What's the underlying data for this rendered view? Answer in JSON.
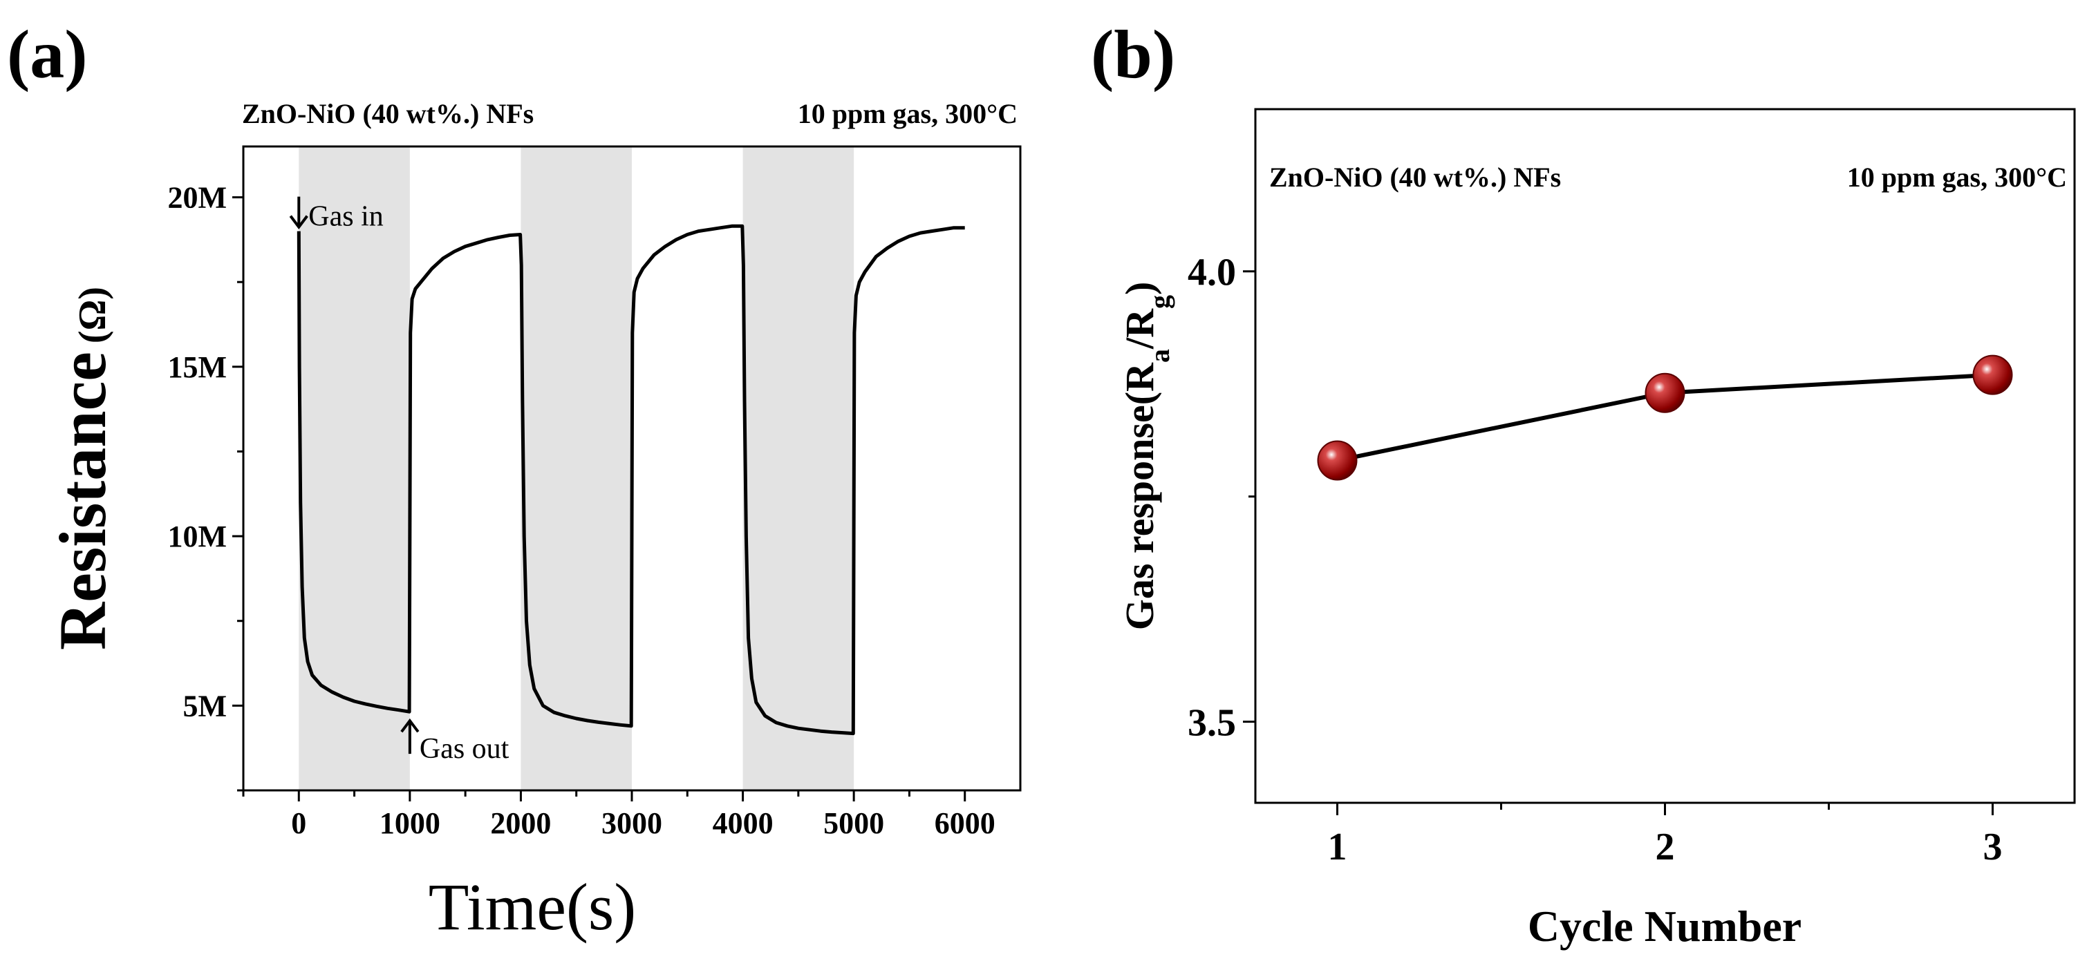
{
  "colors": {
    "shade": "#e3e3e3",
    "line": "#000000",
    "marker": "#8b0000",
    "marker_highlight": "#ffffff"
  },
  "chart_data": [
    {
      "panel": "(a)",
      "type": "line",
      "header_left": "ZnO-NiO (40 wt%.) NFs",
      "header_right": "10 ppm gas, 300°C",
      "xlabel": "Time(s)",
      "ylabel": "Resistance",
      "ylabel_unit": "(Ω)",
      "xlim": [
        -500,
        6500
      ],
      "ylim": [
        2500000,
        21500000
      ],
      "xticks": [
        0,
        1000,
        2000,
        3000,
        4000,
        5000,
        6000
      ],
      "xtick_labels": [
        "0",
        "1000",
        "2000",
        "3000",
        "4000",
        "5000",
        "6000"
      ],
      "yticks": [
        5000000,
        10000000,
        15000000,
        20000000
      ],
      "ytick_labels": [
        "5M",
        "10M",
        "15M",
        "20M"
      ],
      "shaded_intervals": [
        [
          0,
          1000
        ],
        [
          2000,
          3000
        ],
        [
          4000,
          5000
        ]
      ],
      "annotations": [
        {
          "text": "Gas in",
          "x": 0,
          "y": 19000000,
          "arrow": "down"
        },
        {
          "text": "Gas out",
          "x": 1000,
          "y": 4800000,
          "arrow": "up"
        }
      ],
      "series": [
        {
          "name": "Resistance",
          "x": [
            0,
            5,
            15,
            30,
            50,
            80,
            120,
            200,
            300,
            400,
            500,
            600,
            700,
            800,
            900,
            995,
            1005,
            1020,
            1050,
            1100,
            1200,
            1300,
            1400,
            1500,
            1600,
            1700,
            1800,
            1900,
            1995,
            2005,
            2015,
            2030,
            2050,
            2080,
            2120,
            2200,
            2300,
            2400,
            2500,
            2600,
            2700,
            2800,
            2900,
            2995,
            3005,
            3020,
            3050,
            3100,
            3200,
            3300,
            3400,
            3500,
            3600,
            3700,
            3800,
            3900,
            3995,
            4005,
            4015,
            4030,
            4050,
            4080,
            4120,
            4200,
            4300,
            4400,
            4500,
            4600,
            4700,
            4800,
            4900,
            4995,
            5005,
            5020,
            5050,
            5100,
            5200,
            5300,
            5400,
            5500,
            5600,
            5700,
            5800,
            5900,
            6000
          ],
          "y": [
            19000000,
            15000000,
            11000000,
            8500000,
            7000000,
            6300000,
            5900000,
            5600000,
            5400000,
            5250000,
            5130000,
            5050000,
            4980000,
            4920000,
            4870000,
            4820000,
            16000000,
            17000000,
            17300000,
            17500000,
            17900000,
            18200000,
            18400000,
            18550000,
            18650000,
            18750000,
            18820000,
            18880000,
            18900000,
            18000000,
            14000000,
            10000000,
            7500000,
            6200000,
            5500000,
            5000000,
            4800000,
            4700000,
            4620000,
            4560000,
            4510000,
            4470000,
            4430000,
            4400000,
            16000000,
            17200000,
            17600000,
            17900000,
            18300000,
            18550000,
            18750000,
            18900000,
            19000000,
            19050000,
            19100000,
            19150000,
            19150000,
            18000000,
            14000000,
            10000000,
            7000000,
            5800000,
            5100000,
            4700000,
            4500000,
            4400000,
            4330000,
            4290000,
            4250000,
            4220000,
            4200000,
            4180000,
            16000000,
            17100000,
            17500000,
            17800000,
            18250000,
            18500000,
            18700000,
            18850000,
            18950000,
            19000000,
            19050000,
            19100000,
            19100000
          ]
        }
      ]
    },
    {
      "panel": "(b)",
      "type": "line",
      "header_left": "ZnO-NiO (40 wt%.) NFs",
      "header_right": "10 ppm gas, 300°C",
      "xlabel": "Cycle Number",
      "ylabel": "Gas response(R",
      "ylabel_sub1": "a",
      "ylabel_mid": "/R",
      "ylabel_sub2": "g",
      "ylabel_end": ")",
      "xlim": [
        0.75,
        3.25
      ],
      "ylim": [
        3.41,
        4.18
      ],
      "xticks": [
        1,
        2,
        3
      ],
      "xtick_labels": [
        "1",
        "2",
        "3"
      ],
      "yticks": [
        3.5,
        4.0
      ],
      "ytick_labels": [
        "3.5",
        "4.0"
      ],
      "series": [
        {
          "name": "Gas response",
          "x": [
            1,
            2,
            3
          ],
          "y": [
            3.79,
            3.865,
            3.885
          ]
        }
      ]
    }
  ]
}
